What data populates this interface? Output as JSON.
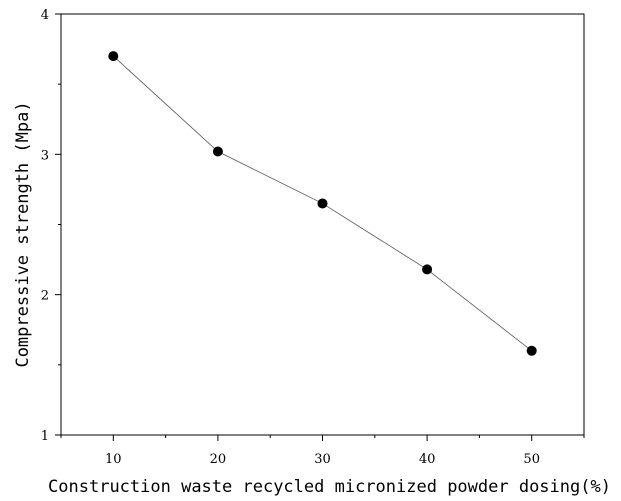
{
  "chart_data": {
    "type": "line",
    "title": "",
    "xlabel": "Construction waste recycled micronized powder dosing(%)",
    "ylabel": "Compressive strength (Mpa)",
    "x": [
      10,
      20,
      30,
      40,
      50
    ],
    "series": [
      {
        "values": [
          3.7,
          3.02,
          2.65,
          2.18,
          1.6
        ]
      }
    ],
    "xlim": [
      5,
      55
    ],
    "ylim": [
      1,
      4
    ],
    "xticks": [
      10,
      20,
      30,
      40,
      50
    ],
    "yticks": [
      1,
      2,
      3,
      4
    ],
    "minor_ticks": true,
    "grid": false,
    "legend": "none",
    "colors": {
      "line": "#555555",
      "marker": "#000000",
      "axis": "#000000"
    }
  }
}
